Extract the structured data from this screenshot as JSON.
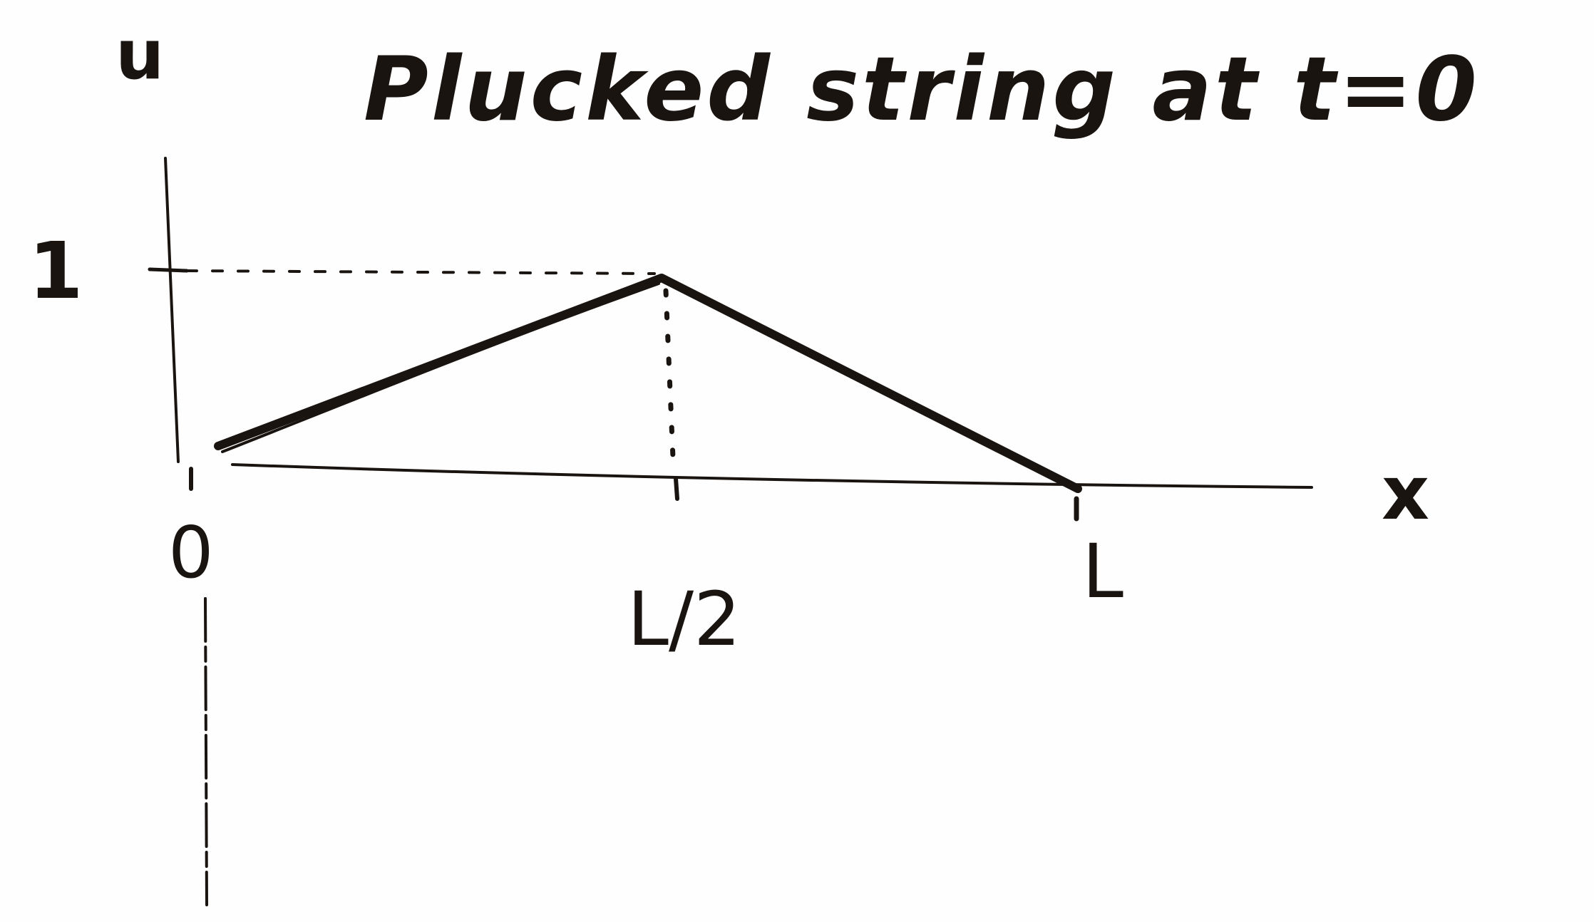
{
  "title": "Plucked string at t=0",
  "axes": {
    "y_label": "u",
    "x_label": "x",
    "y_tick_label": "1",
    "x_tick_labels": [
      "0",
      "L/2",
      "L"
    ]
  },
  "colors": {
    "ink": "#1a1410",
    "paper": "#fefefe"
  }
}
